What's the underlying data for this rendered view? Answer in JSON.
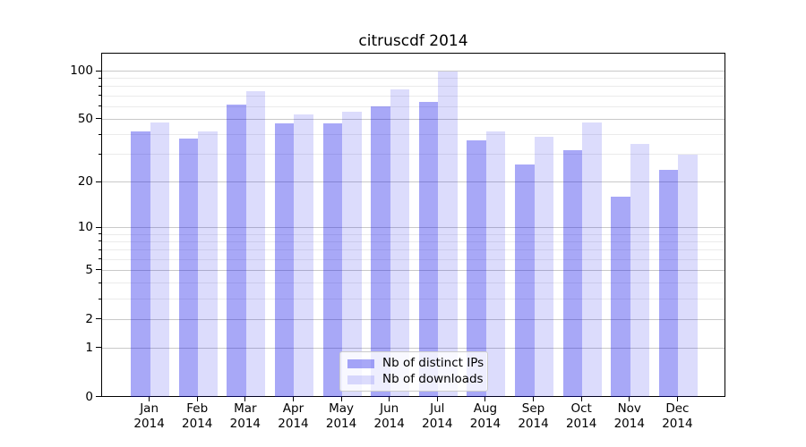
{
  "chart_data": {
    "type": "bar",
    "title": "citruscdf 2014",
    "categories": [
      "Jan",
      "Feb",
      "Mar",
      "Apr",
      "May",
      "Jun",
      "Jul",
      "Aug",
      "Sep",
      "Oct",
      "Nov",
      "Dec"
    ],
    "x_tick_second_line": "2014",
    "series": [
      {
        "name": "Nb of distinct IPs",
        "color": "rgba(13,13,232,0.36)",
        "values": [
          42,
          38,
          62,
          47,
          47,
          60,
          64,
          37,
          26,
          32,
          16,
          24
        ]
      },
      {
        "name": "Nb of downloads",
        "color": "rgba(13,13,232,0.145)",
        "values": [
          48,
          42,
          75,
          54,
          56,
          77,
          100,
          42,
          39,
          48,
          35,
          30
        ]
      }
    ],
    "yscale": "log1p",
    "ylim": [
      0,
      100
    ],
    "y_ticks": [
      0,
      1,
      2,
      5,
      10,
      20,
      50,
      100
    ],
    "y_minor_ticks": [
      3,
      4,
      6,
      7,
      8,
      9,
      30,
      40,
      60,
      70,
      80,
      90
    ],
    "grid": true,
    "legend_position": "lower center",
    "axis_color": "#000000",
    "major_grid_color": "#c9c9c9",
    "minor_grid_color": "#ebebeb"
  }
}
